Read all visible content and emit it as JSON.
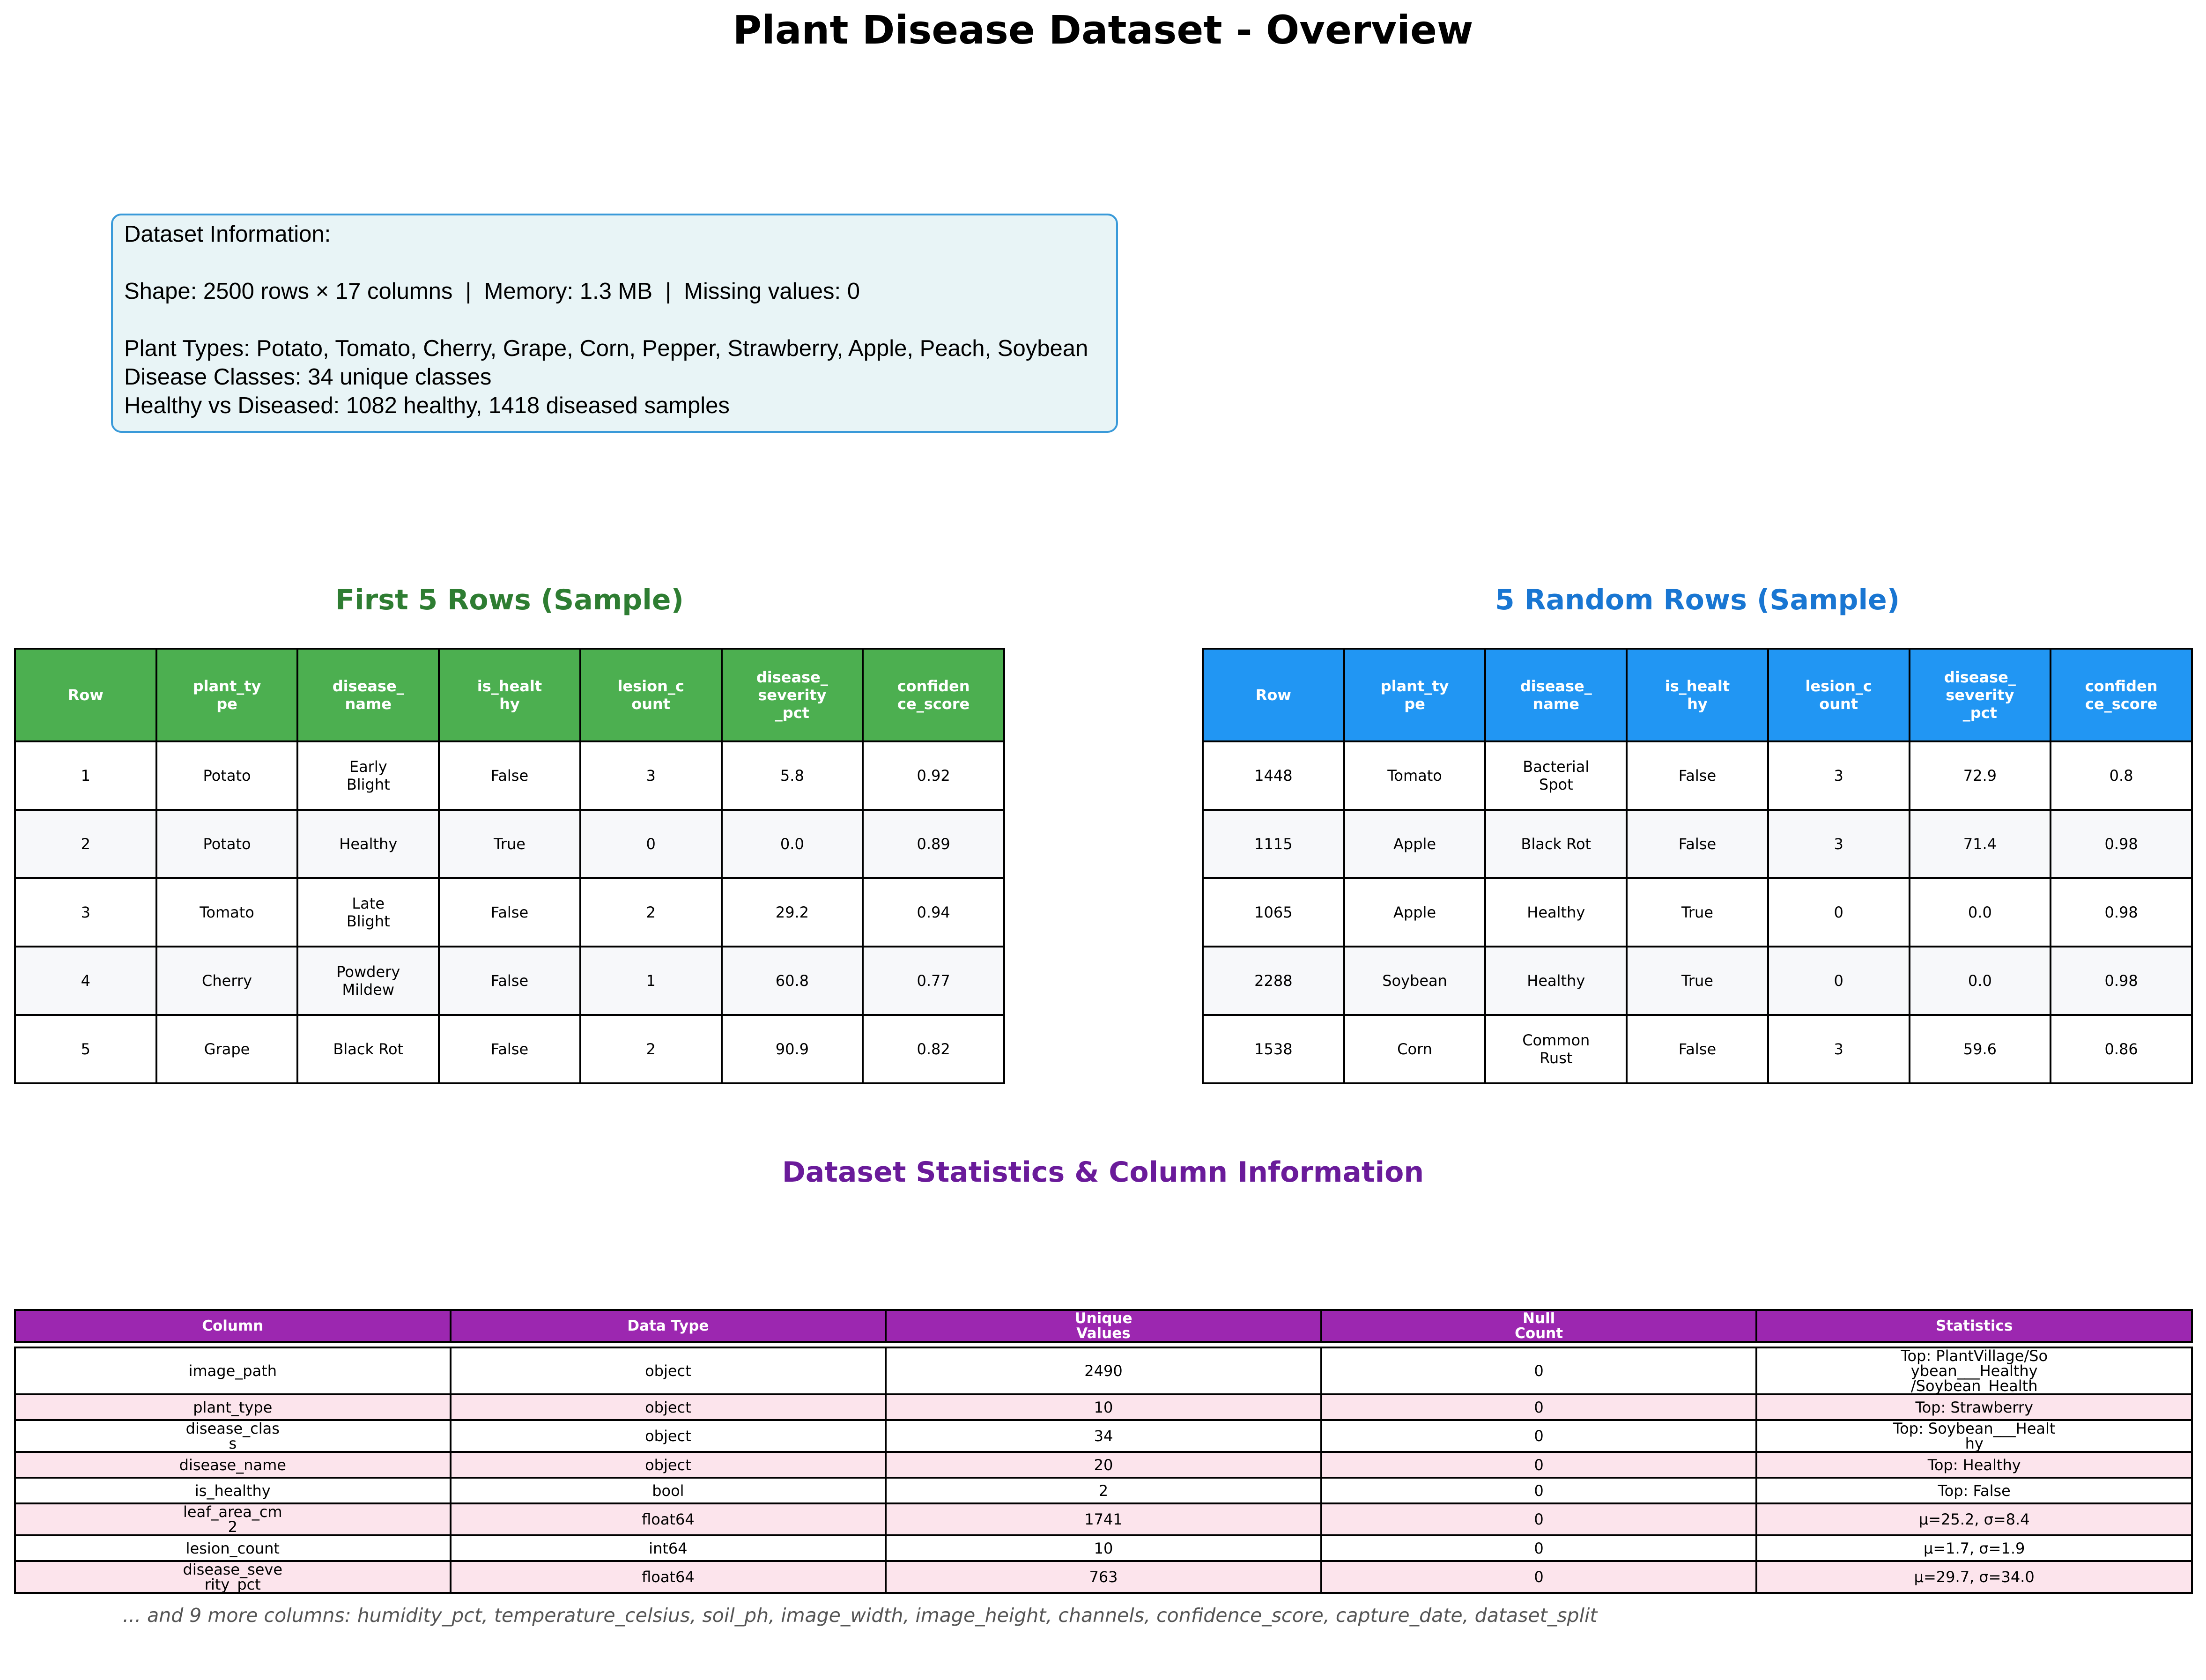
{
  "title": "Plant Disease Dataset - Overview",
  "info": {
    "heading": "Dataset Information:",
    "shape_line": "Shape: 2500 rows × 17 columns  |  Memory: 1.3 MB  |  Missing values: 0",
    "plant_types_line": "Plant Types: Potato, Tomato, Cherry, Grape, Corn, Pepper, Strawberry, Apple, Peach, Soybean",
    "disease_classes_line": "Disease Classes: 34 unique classes",
    "healthy_line": "Healthy vs Diseased: 1082 healthy, 1418 diseased samples"
  },
  "colors": {
    "green_header": "#4caf50",
    "blue_header": "#2196f3",
    "purple_header": "#9c27b0",
    "green_title": "#2e7d32",
    "blue_title": "#1976d2",
    "purple_title": "#6a1b9a",
    "info_bg": "#e8f4f6",
    "info_border": "#3a9ad9"
  },
  "sample_headers": [
    "Row",
    "plant_ty\npe",
    "disease_\nname",
    "is_healt\nhy",
    "lesion_c\nount",
    "disease_\nseverity\n_pct",
    "confiden\nce_score"
  ],
  "first_rows": {
    "title": "First 5 Rows (Sample)",
    "rows": [
      [
        "1",
        "Potato",
        "Early\nBlight",
        "False",
        "3",
        "5.8",
        "0.92"
      ],
      [
        "2",
        "Potato",
        "Healthy",
        "True",
        "0",
        "0.0",
        "0.89"
      ],
      [
        "3",
        "Tomato",
        "Late\nBlight",
        "False",
        "2",
        "29.2",
        "0.94"
      ],
      [
        "4",
        "Cherry",
        "Powdery\nMildew",
        "False",
        "1",
        "60.8",
        "0.77"
      ],
      [
        "5",
        "Grape",
        "Black Rot",
        "False",
        "2",
        "90.9",
        "0.82"
      ]
    ]
  },
  "random_rows": {
    "title": "5 Random Rows (Sample)",
    "rows": [
      [
        "1448",
        "Tomato",
        "Bacterial\nSpot",
        "False",
        "3",
        "72.9",
        "0.8"
      ],
      [
        "1115",
        "Apple",
        "Black Rot",
        "False",
        "3",
        "71.4",
        "0.98"
      ],
      [
        "1065",
        "Apple",
        "Healthy",
        "True",
        "0",
        "0.0",
        "0.98"
      ],
      [
        "2288",
        "Soybean",
        "Healthy",
        "True",
        "0",
        "0.0",
        "0.98"
      ],
      [
        "1538",
        "Corn",
        "Common\nRust",
        "False",
        "3",
        "59.6",
        "0.86"
      ]
    ]
  },
  "stats": {
    "title": "Dataset Statistics & Column Information",
    "headers": [
      "Column",
      "Data Type",
      "Unique\nValues",
      "Null\nCount",
      "Statistics"
    ],
    "rows": [
      [
        "image_path",
        "object",
        "2490",
        "0",
        "Top: PlantVillage/So\nybean___Healthy\n/Soybean_Health"
      ],
      [
        "plant_type",
        "object",
        "10",
        "0",
        "Top: Strawberry"
      ],
      [
        "disease_clas\ns",
        "object",
        "34",
        "0",
        "Top: Soybean___Healt\nhy"
      ],
      [
        "disease_name",
        "object",
        "20",
        "0",
        "Top: Healthy"
      ],
      [
        "is_healthy",
        "bool",
        "2",
        "0",
        "Top: False"
      ],
      [
        "leaf_area_cm\n2",
        "float64",
        "1741",
        "0",
        "μ=25.2, σ=8.4"
      ],
      [
        "lesion_count",
        "int64",
        "10",
        "0",
        "μ=1.7, σ=1.9"
      ],
      [
        "disease_seve\nrity_pct",
        "float64",
        "763",
        "0",
        "μ=29.7, σ=34.0"
      ]
    ]
  },
  "footnote": "... and 9 more columns: humidity_pct, temperature_celsius, soil_ph, image_width, image_height, channels, confidence_score, capture_date, dataset_split"
}
